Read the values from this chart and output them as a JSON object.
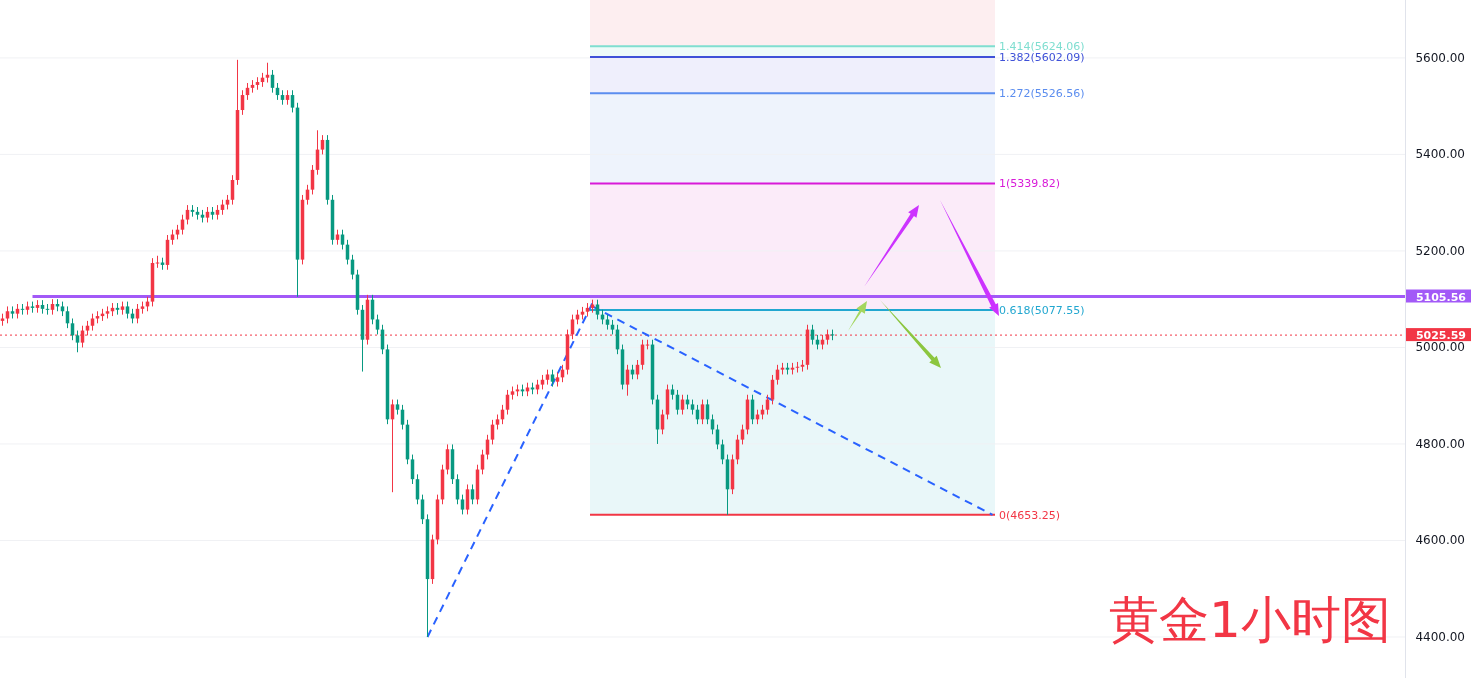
{
  "chart_data": {
    "type": "candlestick",
    "title": "黄金1小时图",
    "categories": [
      null,
      null,
      null,
      null,
      null,
      null,
      null,
      null,
      null,
      null,
      null,
      null,
      null,
      null,
      null,
      null,
      null,
      null,
      null,
      null,
      null,
      null,
      null,
      null,
      null,
      null,
      null,
      null,
      null,
      null,
      null,
      null,
      null,
      null,
      null,
      null,
      null,
      null,
      null,
      null,
      null,
      null,
      null,
      null,
      null,
      null,
      null,
      null,
      null,
      null,
      null,
      null,
      null,
      null,
      null,
      null,
      null,
      null,
      null,
      null,
      null,
      null,
      null,
      null,
      null,
      null,
      null,
      null,
      null,
      null,
      null,
      null,
      null,
      null,
      null,
      null,
      null,
      null,
      null,
      null,
      null,
      null,
      null,
      null,
      null,
      null,
      null,
      null,
      null,
      null,
      null,
      null,
      null,
      null,
      null,
      null,
      null,
      null,
      null,
      null,
      null,
      null,
      null,
      null,
      null,
      null,
      null,
      null,
      null,
      null,
      null,
      null,
      null,
      null,
      null,
      null,
      null,
      null,
      null,
      null,
      null,
      null,
      null,
      null,
      null,
      null,
      null,
      null,
      null,
      null,
      null,
      null,
      null,
      null,
      null,
      null,
      null,
      null,
      null,
      null,
      null,
      null,
      null,
      null,
      null,
      null,
      null,
      null,
      null,
      null,
      null,
      null,
      null,
      null,
      null,
      null,
      null,
      null,
      null,
      null,
      null,
      null,
      null,
      null,
      null,
      null,
      null,
      null,
      null,
      null,
      null,
      null,
      null,
      null,
      null,
      null,
      null,
      null,
      null,
      null,
      null,
      null,
      null,
      null,
      null,
      null,
      null,
      null,
      null,
      null,
      null,
      null,
      null,
      null,
      null,
      null,
      null,
      null,
      null,
      null,
      null,
      null,
      null,
      null,
      null,
      null,
      null,
      null,
      null,
      null,
      null,
      null,
      null,
      null,
      null,
      null,
      null,
      null,
      null,
      null,
      null,
      null,
      null,
      null,
      null,
      null,
      null,
      null,
      null,
      null,
      null,
      null,
      null,
      null,
      null,
      null,
      null,
      null,
      null,
      null,
      null,
      null,
      null,
      null,
      null,
      null,
      null,
      null,
      null,
      null,
      null,
      null,
      null,
      null,
      null,
      null,
      null,
      null,
      null,
      null,
      null,
      null,
      null,
      null,
      null,
      null,
      null,
      null,
      null,
      null,
      null,
      null,
      null,
      null,
      null,
      null,
      null,
      null,
      null,
      null,
      null
    ],
    "ohlc": [
      [
        5055,
        5070,
        5045,
        5060
      ],
      [
        5060,
        5085,
        5050,
        5075
      ],
      [
        5075,
        5085,
        5060,
        5070
      ],
      [
        5070,
        5090,
        5060,
        5080
      ],
      [
        5080,
        5090,
        5068,
        5078
      ],
      [
        5078,
        5095,
        5068,
        5085
      ],
      [
        5085,
        5095,
        5072,
        5082
      ],
      [
        5082,
        5098,
        5072,
        5088
      ],
      [
        5088,
        5098,
        5070,
        5080
      ],
      [
        5080,
        5090,
        5068,
        5078
      ],
      [
        5078,
        5100,
        5068,
        5090
      ],
      [
        5090,
        5100,
        5075,
        5085
      ],
      [
        5085,
        5095,
        5065,
        5075
      ],
      [
        5075,
        5085,
        5040,
        5050
      ],
      [
        5050,
        5060,
        5015,
        5025
      ],
      [
        5025,
        5035,
        4990,
        5010
      ],
      [
        5010,
        5045,
        5000,
        5035
      ],
      [
        5035,
        5055,
        5025,
        5045
      ],
      [
        5045,
        5070,
        5035,
        5060
      ],
      [
        5060,
        5075,
        5050,
        5065
      ],
      [
        5065,
        5080,
        5055,
        5070
      ],
      [
        5070,
        5085,
        5060,
        5075
      ],
      [
        5075,
        5092,
        5065,
        5082
      ],
      [
        5082,
        5092,
        5068,
        5078
      ],
      [
        5078,
        5095,
        5068,
        5085
      ],
      [
        5085,
        5095,
        5060,
        5070
      ],
      [
        5070,
        5080,
        5050,
        5060
      ],
      [
        5060,
        5090,
        5050,
        5080
      ],
      [
        5080,
        5095,
        5070,
        5085
      ],
      [
        5085,
        5105,
        5075,
        5095
      ],
      [
        5095,
        5185,
        5085,
        5175
      ],
      [
        5175,
        5190,
        5165,
        5176
      ],
      [
        5176,
        5186,
        5161,
        5171
      ],
      [
        5171,
        5233,
        5161,
        5223
      ],
      [
        5223,
        5244,
        5213,
        5234
      ],
      [
        5234,
        5254,
        5224,
        5244
      ],
      [
        5244,
        5275,
        5234,
        5265
      ],
      [
        5265,
        5295,
        5255,
        5285
      ],
      [
        5285,
        5295,
        5271,
        5281
      ],
      [
        5281,
        5291,
        5265,
        5275
      ],
      [
        5275,
        5285,
        5259,
        5269
      ],
      [
        5269,
        5291,
        5259,
        5281
      ],
      [
        5281,
        5291,
        5265,
        5275
      ],
      [
        5275,
        5295,
        5265,
        5285
      ],
      [
        5285,
        5306,
        5275,
        5296
      ],
      [
        5296,
        5316,
        5286,
        5306
      ],
      [
        5306,
        5357,
        5296,
        5347
      ],
      [
        5347,
        5596,
        5337,
        5492
      ],
      [
        5492,
        5533,
        5482,
        5523
      ],
      [
        5523,
        5548,
        5513,
        5538
      ],
      [
        5538,
        5554,
        5528,
        5544
      ],
      [
        5544,
        5560,
        5534,
        5550
      ],
      [
        5550,
        5569,
        5540,
        5559
      ],
      [
        5559,
        5590,
        5549,
        5565
      ],
      [
        5565,
        5575,
        5528,
        5538
      ],
      [
        5538,
        5548,
        5513,
        5523
      ],
      [
        5523,
        5533,
        5503,
        5513
      ],
      [
        5513,
        5533,
        5503,
        5523
      ],
      [
        5523,
        5533,
        5487,
        5497
      ],
      [
        5497,
        5507,
        5105,
        5182
      ],
      [
        5182,
        5316,
        5172,
        5306
      ],
      [
        5306,
        5337,
        5296,
        5327
      ],
      [
        5327,
        5378,
        5317,
        5368
      ],
      [
        5368,
        5450,
        5358,
        5410
      ],
      [
        5410,
        5440,
        5400,
        5430
      ],
      [
        5430,
        5440,
        5296,
        5306
      ],
      [
        5306,
        5316,
        5213,
        5223
      ],
      [
        5223,
        5244,
        5213,
        5234
      ],
      [
        5234,
        5244,
        5203,
        5213
      ],
      [
        5213,
        5223,
        5172,
        5182
      ],
      [
        5182,
        5192,
        5141,
        5151
      ],
      [
        5151,
        5161,
        5068,
        5078
      ],
      [
        5078,
        5088,
        4950,
        5016
      ],
      [
        5016,
        5109,
        5006,
        5099
      ],
      [
        5099,
        5109,
        5048,
        5058
      ],
      [
        5058,
        5068,
        5027,
        5037
      ],
      [
        5037,
        5047,
        4986,
        4996
      ],
      [
        4996,
        5006,
        4841,
        4851
      ],
      [
        4851,
        4892,
        4700,
        4882
      ],
      [
        4882,
        4892,
        4861,
        4871
      ],
      [
        4871,
        4881,
        4830,
        4840
      ],
      [
        4840,
        4850,
        4758,
        4768
      ],
      [
        4768,
        4778,
        4717,
        4727
      ],
      [
        4727,
        4737,
        4675,
        4685
      ],
      [
        4685,
        4695,
        4634,
        4644
      ],
      [
        4644,
        4654,
        4400,
        4520
      ],
      [
        4520,
        4612,
        4510,
        4602
      ],
      [
        4602,
        4695,
        4592,
        4685
      ],
      [
        4685,
        4757,
        4675,
        4747
      ],
      [
        4747,
        4799,
        4737,
        4789
      ],
      [
        4789,
        4799,
        4717,
        4727
      ],
      [
        4727,
        4737,
        4675,
        4685
      ],
      [
        4685,
        4695,
        4654,
        4664
      ],
      [
        4664,
        4716,
        4654,
        4706
      ],
      [
        4706,
        4716,
        4675,
        4685
      ],
      [
        4685,
        4757,
        4675,
        4747
      ],
      [
        4747,
        4788,
        4737,
        4778
      ],
      [
        4778,
        4819,
        4768,
        4809
      ],
      [
        4809,
        4850,
        4799,
        4840
      ],
      [
        4840,
        4861,
        4830,
        4851
      ],
      [
        4851,
        4881,
        4841,
        4871
      ],
      [
        4871,
        4912,
        4861,
        4902
      ],
      [
        4902,
        4919,
        4892,
        4909
      ],
      [
        4909,
        4923,
        4899,
        4913
      ],
      [
        4913,
        4923,
        4899,
        4909
      ],
      [
        4909,
        4927,
        4899,
        4917
      ],
      [
        4917,
        4927,
        4903,
        4913
      ],
      [
        4913,
        4933,
        4903,
        4923
      ],
      [
        4923,
        4943,
        4913,
        4933
      ],
      [
        4933,
        4954,
        4923,
        4944
      ],
      [
        4944,
        4954,
        4919,
        4929
      ],
      [
        4929,
        4948,
        4919,
        4938
      ],
      [
        4938,
        4964,
        4928,
        4954
      ],
      [
        4954,
        5037,
        4944,
        5027
      ],
      [
        5027,
        5068,
        5017,
        5058
      ],
      [
        5058,
        5078,
        5048,
        5068
      ],
      [
        5068,
        5084,
        5058,
        5074
      ],
      [
        5074,
        5092,
        5064,
        5082
      ],
      [
        5082,
        5099,
        5072,
        5089
      ],
      [
        5089,
        5099,
        5058,
        5068
      ],
      [
        5068,
        5078,
        5048,
        5058
      ],
      [
        5058,
        5068,
        5037,
        5047
      ],
      [
        5047,
        5057,
        5027,
        5037
      ],
      [
        5037,
        5047,
        4986,
        4996
      ],
      [
        4996,
        5006,
        4913,
        4923
      ],
      [
        4923,
        4964,
        4900,
        4954
      ],
      [
        4954,
        4964,
        4934,
        4944
      ],
      [
        4944,
        4974,
        4934,
        4964
      ],
      [
        4964,
        5016,
        4954,
        5006
      ],
      [
        5006,
        5016,
        4996,
        5006
      ],
      [
        5006,
        5016,
        4882,
        4892
      ],
      [
        4892,
        4902,
        4800,
        4830
      ],
      [
        4830,
        4871,
        4820,
        4861
      ],
      [
        4861,
        4923,
        4851,
        4913
      ],
      [
        4913,
        4923,
        4892,
        4902
      ],
      [
        4902,
        4912,
        4861,
        4871
      ],
      [
        4871,
        4902,
        4861,
        4892
      ],
      [
        4892,
        4902,
        4872,
        4882
      ],
      [
        4882,
        4892,
        4861,
        4871
      ],
      [
        4871,
        4881,
        4841,
        4851
      ],
      [
        4851,
        4892,
        4841,
        4882
      ],
      [
        4882,
        4892,
        4841,
        4851
      ],
      [
        4851,
        4861,
        4820,
        4830
      ],
      [
        4830,
        4840,
        4789,
        4799
      ],
      [
        4799,
        4809,
        4758,
        4768
      ],
      [
        4768,
        4778,
        4653,
        4706
      ],
      [
        4706,
        4778,
        4696,
        4768
      ],
      [
        4768,
        4819,
        4758,
        4809
      ],
      [
        4809,
        4840,
        4799,
        4830
      ],
      [
        4830,
        4902,
        4820,
        4892
      ],
      [
        4892,
        4902,
        4841,
        4851
      ],
      [
        4851,
        4871,
        4841,
        4861
      ],
      [
        4861,
        4881,
        4851,
        4871
      ],
      [
        4871,
        4902,
        4861,
        4892
      ],
      [
        4892,
        4943,
        4882,
        4933
      ],
      [
        4933,
        4964,
        4923,
        4954
      ],
      [
        4954,
        4968,
        4944,
        4958
      ],
      [
        4958,
        4968,
        4944,
        4954
      ],
      [
        4954,
        4968,
        4944,
        4958
      ],
      [
        4958,
        4970,
        4948,
        4960
      ],
      [
        4960,
        4974,
        4950,
        4964
      ],
      [
        4964,
        5047,
        4954,
        5037
      ],
      [
        5037,
        5047,
        5006,
        5016
      ],
      [
        5016,
        5026,
        4996,
        5006
      ],
      [
        5006,
        5026,
        4996,
        5016
      ],
      [
        5016,
        5037,
        5006,
        5027
      ],
      [
        5027,
        5037,
        5015,
        5025
      ],
      null,
      null,
      null,
      null,
      null,
      null,
      null,
      null,
      null,
      null,
      null,
      null,
      null,
      null,
      null,
      null,
      null,
      null,
      null,
      null,
      null,
      null,
      null,
      null,
      null,
      null,
      null,
      null,
      null,
      null,
      null,
      null,
      null,
      null,
      null,
      null,
      null,
      null,
      null,
      null,
      null,
      null,
      null,
      null,
      null,
      null,
      null,
      null,
      null,
      null,
      null,
      null,
      null,
      null,
      null,
      null,
      null,
      null,
      null,
      null,
      null,
      null,
      null,
      null,
      null,
      null,
      null,
      null,
      null,
      null,
      null,
      null,
      null,
      null,
      null,
      null,
      null,
      null,
      null,
      null,
      null,
      null,
      null,
      null,
      null,
      null,
      null,
      null,
      null,
      null,
      null,
      null,
      null,
      null,
      null,
      null,
      null,
      null,
      null,
      null,
      null,
      null,
      null,
      null,
      null,
      null,
      null,
      null,
      null,
      null,
      null,
      null,
      null,
      null
    ],
    "series": [
      {
        "type": "line",
        "color": "#2962ff",
        "line_style": "dashed",
        "values": [
          null,
          null,
          null,
          null,
          null,
          null,
          null,
          null,
          null,
          null,
          null,
          null,
          null,
          null,
          null,
          null,
          null,
          null,
          null,
          null,
          null,
          null,
          null,
          null,
          null,
          null,
          null,
          null,
          null,
          null,
          null,
          null,
          null,
          null,
          null,
          null,
          null,
          null,
          null,
          null,
          null,
          null,
          null,
          null,
          null,
          null,
          null,
          null,
          null,
          null,
          null,
          null,
          null,
          null,
          null,
          null,
          null,
          null,
          null,
          null,
          null,
          null,
          null,
          null,
          null,
          null,
          null,
          null,
          null,
          null,
          null,
          null,
          null,
          null,
          null,
          null,
          null,
          null,
          null,
          null,
          null,
          null,
          null,
          null,
          null,
          4400,
          null,
          null,
          null,
          null,
          null,
          null,
          null,
          null,
          null,
          null,
          null,
          null,
          null,
          null,
          null,
          null,
          null,
          null,
          null,
          null,
          null,
          null,
          null,
          null,
          null,
          null,
          null,
          null,
          null,
          null,
          null,
          null,
          5092,
          null,
          null,
          null,
          null,
          null,
          null,
          null,
          null,
          null,
          null,
          null,
          null,
          null,
          null,
          null,
          null,
          null,
          null,
          null,
          null,
          null,
          null,
          null,
          null,
          null,
          null,
          null,
          null,
          null,
          null,
          null,
          null,
          null,
          null,
          null,
          null,
          null,
          null,
          null,
          null,
          null,
          null,
          null,
          null,
          null,
          null,
          null,
          null,
          null,
          null,
          null,
          null,
          null,
          null,
          null,
          null,
          null,
          null,
          null,
          null,
          null,
          null,
          null,
          null,
          null,
          null,
          null,
          null,
          null,
          null,
          null,
          null,
          null,
          null,
          null,
          null,
          null,
          null,
          null,
          null,
          null,
          null,
          null,
          null,
          null,
          null,
          null,
          null,
          null,
          null,
          null,
          null,
          null,
          null,
          null,
          null,
          null,
          null,
          null,
          null,
          null,
          null,
          null,
          null,
          null,
          null,
          null,
          null,
          null,
          null,
          null,
          null,
          null,
          null,
          null,
          null,
          null,
          null,
          null,
          null,
          null,
          null,
          null,
          null,
          null,
          null,
          null,
          null,
          null,
          null,
          null,
          null,
          null,
          null,
          null,
          null,
          null,
          null,
          null,
          null,
          null,
          null,
          null,
          null,
          null,
          null,
          null,
          null,
          null,
          null,
          null,
          null,
          null,
          null,
          null,
          null,
          null,
          null,
          null,
          null,
          null,
          null
        ]
      },
      {
        "type": "line",
        "color": "#2962ff",
        "line_style": "dashed",
        "values": [
          null,
          null,
          null,
          null,
          null,
          null,
          null,
          null,
          null,
          null,
          null,
          null,
          null,
          null,
          null,
          null,
          null,
          null,
          null,
          null,
          null,
          null,
          null,
          null,
          null,
          null,
          null,
          null,
          null,
          null,
          null,
          null,
          null,
          null,
          null,
          null,
          null,
          null,
          null,
          null,
          null,
          null,
          null,
          null,
          null,
          null,
          null,
          null,
          null,
          null,
          null,
          null,
          null,
          null,
          null,
          null,
          null,
          null,
          null,
          null,
          null,
          null,
          null,
          null,
          null,
          null,
          null,
          null,
          null,
          null,
          null,
          null,
          null,
          null,
          null,
          null,
          null,
          null,
          null,
          null,
          null,
          null,
          null,
          null,
          null,
          null,
          null,
          null,
          null,
          null,
          null,
          null,
          null,
          null,
          null,
          null,
          null,
          null,
          null,
          null,
          null,
          null,
          null,
          null,
          null,
          null,
          null,
          null,
          null,
          null,
          null,
          null,
          null,
          null,
          null,
          null,
          null,
          null,
          5085,
          null,
          null,
          null,
          null,
          null,
          null,
          null,
          null,
          null,
          null,
          null,
          null,
          null,
          null,
          null,
          null,
          null,
          null,
          null,
          null,
          null,
          null,
          null,
          null,
          null,
          null,
          null,
          null,
          null,
          null,
          null,
          null,
          null,
          null,
          null,
          null,
          null,
          null,
          null,
          null,
          null,
          null,
          null,
          null,
          null,
          null,
          null,
          null,
          null,
          null,
          null,
          null,
          null,
          null,
          null,
          null,
          null,
          null,
          null,
          null,
          null,
          null,
          null,
          null,
          null,
          null,
          null,
          null,
          null,
          null,
          null,
          null,
          null,
          null,
          null,
          null,
          null,
          null,
          null,
          4653,
          null,
          null,
          null,
          null,
          null,
          null,
          null,
          null,
          null,
          null,
          null,
          null,
          null,
          null,
          null,
          null,
          null,
          null,
          null,
          null,
          null,
          null,
          null,
          null,
          null,
          null,
          null,
          null,
          null,
          null,
          null,
          null,
          null,
          null,
          null,
          null,
          null,
          null,
          null,
          null,
          null,
          null,
          null,
          null,
          null,
          null,
          null,
          null,
          null,
          null,
          null,
          null,
          null,
          null,
          null,
          null,
          null,
          null,
          null,
          null,
          null,
          null,
          null,
          null,
          null,
          null,
          null,
          null,
          null,
          null,
          null,
          null,
          null,
          null,
          null,
          null,
          null,
          null,
          null,
          null,
          null,
          null
        ]
      }
    ],
    "ylim": [
      4315,
      5720
    ],
    "yticks": [
      {
        "value": 4400,
        "label": "4400.00"
      },
      {
        "value": 4600,
        "label": "4600.00"
      },
      {
        "value": 4800,
        "label": "4800.00"
      },
      {
        "value": 5000,
        "label": "5000.00"
      },
      {
        "value": 5200,
        "label": "5200.00"
      },
      {
        "value": 5400,
        "label": "5400.00"
      },
      {
        "value": 5600,
        "label": "5600.00"
      }
    ],
    "tick_labels": "y",
    "grid": "y",
    "bands": [
      {
        "axis": "y",
        "from": 4653.25,
        "to": 5077.55,
        "color": "#e9f7f9"
      },
      {
        "axis": "y",
        "from": 5077.55,
        "to": 5339.82,
        "color": "#fbebf9"
      },
      {
        "axis": "y",
        "from": 5339.82,
        "to": 5526.56,
        "color": "#eef3fc"
      },
      {
        "axis": "y",
        "from": 5526.56,
        "to": 5602.09,
        "color": "#efeffc"
      },
      {
        "axis": "y",
        "from": 5602.09,
        "to": 5624.06,
        "color": "#eefbf9"
      },
      {
        "axis": "y",
        "from": 5624.06,
        "to": 5720,
        "color": "#fdeef0"
      }
    ],
    "ref_lines": [
      {
        "axis": "y",
        "value": 5624.06,
        "label": "1.414(5624.06)",
        "color": "#7fded0"
      },
      {
        "axis": "y",
        "value": 5602.09,
        "label": "1.382(5602.09)",
        "color": "#3f51d8"
      },
      {
        "axis": "y",
        "value": 5526.56,
        "label": "1.272(5526.56)",
        "color": "#5b8def"
      },
      {
        "axis": "y",
        "value": 5339.82,
        "label": "1(5339.82)",
        "color": "#d81ad8"
      },
      {
        "axis": "y",
        "value": 5077.55,
        "label": "0.618(5077.55)",
        "color": "#22a7d0"
      },
      {
        "axis": "y",
        "value": 4653.25,
        "label": "0(4653.25)",
        "color": "#f23645"
      },
      {
        "axis": "y",
        "value": 5105.56,
        "label": "5105.56",
        "color": "#a259f7"
      },
      {
        "axis": "y",
        "value": 5025.59,
        "label": "5025.59",
        "color": "#f23645",
        "line_style": "dotted"
      }
    ]
  }
}
